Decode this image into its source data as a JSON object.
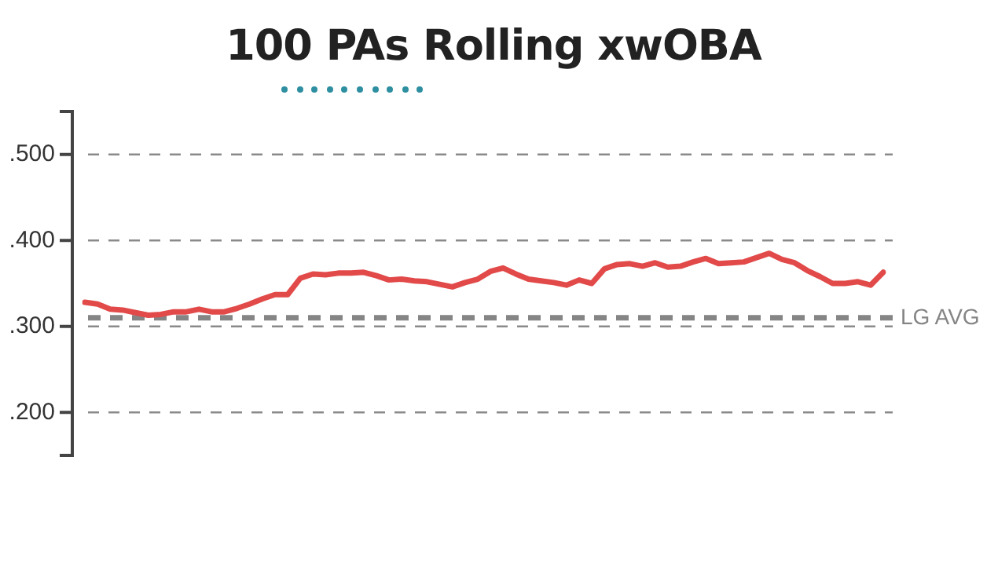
{
  "chart_data": {
    "type": "line",
    "title": "100 PAs Rolling xwOBA",
    "categories": [
      null,
      null,
      null,
      null,
      null,
      null,
      null,
      null,
      null,
      null,
      null,
      null,
      null,
      null,
      null,
      null,
      null,
      null,
      null,
      null,
      null,
      null,
      null,
      null,
      null,
      null,
      null,
      null,
      null,
      null,
      null,
      null,
      null,
      null,
      null,
      null,
      null,
      null,
      null,
      null,
      null,
      null,
      null,
      null,
      null,
      null,
      null,
      null,
      null,
      null,
      null,
      null,
      null,
      null,
      null,
      null,
      null,
      null,
      null,
      null,
      null,
      null,
      null,
      null
    ],
    "series": [
      {
        "color": "#e24a4a",
        "values": [
          0.328,
          0.326,
          0.32,
          0.319,
          0.316,
          0.313,
          0.314,
          0.317,
          0.317,
          0.32,
          0.317,
          0.317,
          0.321,
          0.326,
          0.332,
          0.337,
          0.337,
          0.356,
          0.361,
          0.36,
          0.362,
          0.362,
          0.363,
          0.359,
          0.354,
          0.355,
          0.353,
          0.352,
          0.349,
          0.346,
          0.351,
          0.355,
          0.364,
          0.368,
          0.361,
          0.355,
          0.353,
          0.351,
          0.348,
          0.354,
          0.35,
          0.367,
          0.372,
          0.373,
          0.37,
          0.374,
          0.369,
          0.37,
          0.375,
          0.379,
          0.373,
          0.374,
          0.375,
          0.38,
          0.385,
          0.378,
          0.374,
          0.365,
          0.358,
          0.35,
          0.35,
          0.352,
          0.348,
          0.363
        ]
      }
    ],
    "ylim": [
      0.15,
      0.55
    ],
    "yticks": [
      {
        "value": 0.2,
        "label": ".200"
      },
      {
        "value": 0.3,
        "label": ".300"
      },
      {
        "value": 0.4,
        "label": ".400"
      },
      {
        "value": 0.5,
        "label": ".500"
      }
    ],
    "grid": "y",
    "tick_labels": "y",
    "marker": "none",
    "line_style": "solid",
    "ref_lines": [
      {
        "axis": "y",
        "value": 0.31,
        "label": "LG AVG",
        "color": "#858585",
        "line_style": "dashed"
      }
    ]
  }
}
